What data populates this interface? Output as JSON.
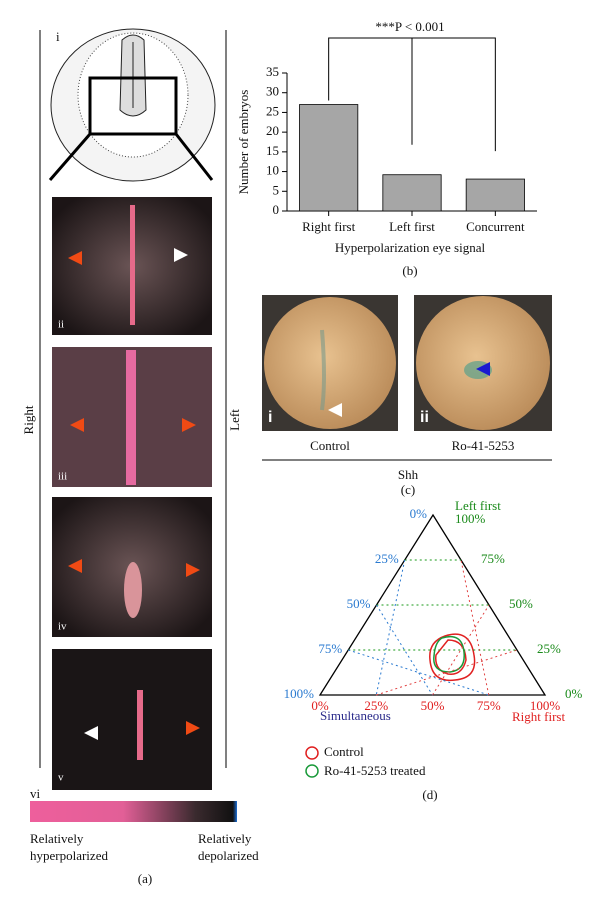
{
  "panel_a": {
    "labels": [
      "i",
      "ii",
      "iii",
      "iv",
      "v",
      "vi"
    ],
    "side_right": "Right",
    "side_left": "Left",
    "scale_left": [
      "Relatively",
      "hyperpolarized"
    ],
    "scale_right": [
      "Relatively",
      "depolarized"
    ],
    "caption": "(a)"
  },
  "chart_data": {
    "type": "bar",
    "categories": [
      "Right first",
      "Left first",
      "Concurrent"
    ],
    "values": [
      27,
      9.2,
      8.1
    ],
    "color": "#a6a6a6",
    "ylim": [
      0,
      35
    ],
    "yticks": [
      0,
      5,
      10,
      15,
      20,
      25,
      30,
      35
    ],
    "y_label": "Number of embryos",
    "x_label": "Hyperpolarization eye signal",
    "annotation": "***P < 0.001",
    "caption": "(b)"
  },
  "panel_c": {
    "labels": [
      "i",
      "ii"
    ],
    "conditions": [
      "Control",
      "Ro-41-5253"
    ],
    "gene": "Shh",
    "caption": "(c)"
  },
  "panel_d": {
    "top_label": "Left first",
    "left_label": "Simultaneous",
    "right_label": "Right first",
    "left_ticks": [
      "0%",
      "25%",
      "50%",
      "75%",
      "100%"
    ],
    "right_ticks": [
      "100%",
      "75%",
      "50%",
      "25%",
      "0%"
    ],
    "bottom_ticks": [
      "0%",
      "25%",
      "50%",
      "75%",
      "100%"
    ],
    "legend": [
      "Control",
      "Ro-41-5253 treated"
    ],
    "caption": "(d)"
  }
}
